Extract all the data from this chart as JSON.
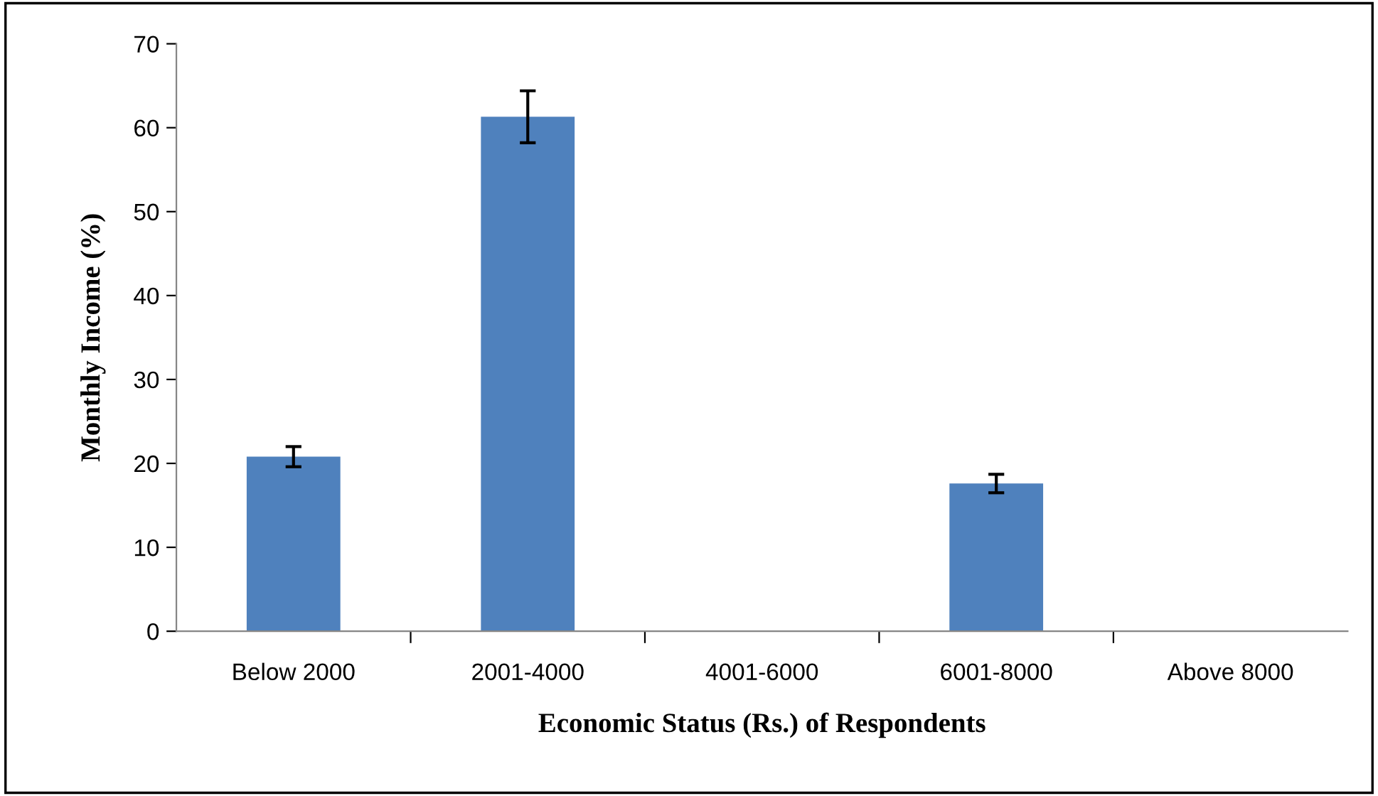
{
  "chart_data": {
    "type": "bar",
    "xlabel": "Economic Status (Rs.) of Respondents",
    "ylabel": "Monthly Income (%)",
    "categories": [
      "Below 2000",
      "2001-4000",
      "4001-6000",
      "6001-8000",
      "Above 8000"
    ],
    "values": [
      20.8,
      61.3,
      0,
      17.6,
      0
    ],
    "errors": [
      1.2,
      3.1,
      null,
      1.1,
      null
    ],
    "color": "#4f81bd",
    "ylim": [
      0,
      70
    ],
    "yticks": [
      0,
      10,
      20,
      30,
      40,
      50,
      60,
      70
    ],
    "grid": false
  }
}
